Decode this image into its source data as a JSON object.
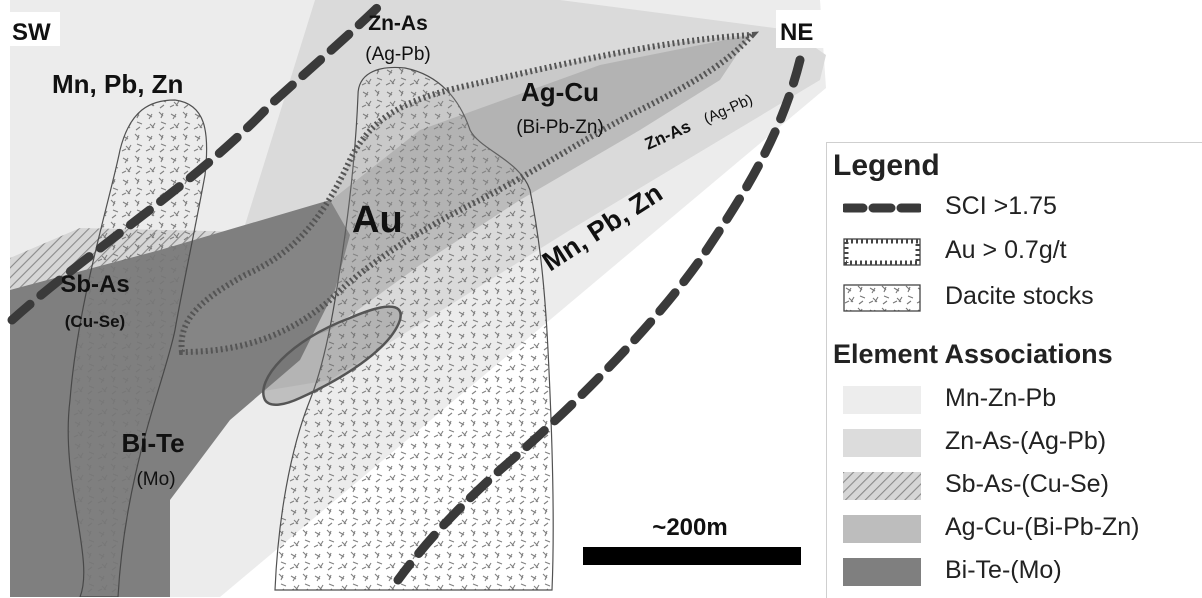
{
  "map": {
    "direction_left": "SW",
    "direction_right": "NE",
    "scale_label": "~200m",
    "labels": {
      "mnpbzn_top": "Mn, Pb, Zn",
      "znas_top": "Zn-As",
      "znas_top_sub": "(Ag-Pb)",
      "agcu": "Ag-Cu",
      "agcu_sub": "(Bi-Pb-Zn)",
      "znas_right": "Zn-As",
      "znas_right_sub": "(Ag-Pb)",
      "au": "Au",
      "mnpbzn_right": "Mn, Pb, Zn",
      "sbas": "Sb-As",
      "sbas_sub": "(Cu-Se)",
      "bite": "Bi-Te",
      "bite_sub": "(Mo)"
    }
  },
  "legend": {
    "title": "Legend",
    "symbols": [
      {
        "label": "SCI >1.75",
        "icon": "dashed-line-icon"
      },
      {
        "label": "Au > 0.7g/t",
        "icon": "au-outline-icon"
      },
      {
        "label": "Dacite stocks",
        "icon": "dacite-pattern-icon"
      }
    ],
    "associations_title": "Element Associations",
    "associations": [
      {
        "label": "Mn-Zn-Pb",
        "color": "#ededed"
      },
      {
        "label": "Zn-As-(Ag-Pb)",
        "color": "#dcdcdc"
      },
      {
        "label": "Sb-As-(Cu-Se)",
        "color": "hatched"
      },
      {
        "label": "Ag-Cu-(Bi-Pb-Zn)",
        "color": "#bdbdbd"
      },
      {
        "label": "Bi-Te-(Mo)",
        "color": "#7f7f7f"
      }
    ]
  }
}
